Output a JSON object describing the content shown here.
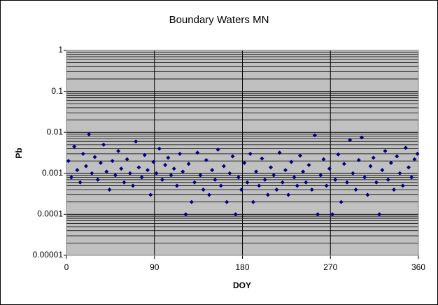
{
  "chart_data": {
    "type": "scatter",
    "title": "Boundary Waters MN",
    "x_label": "DOY",
    "y_label": "Pb",
    "xlim": [
      0,
      360
    ],
    "xticks": [
      0,
      90,
      180,
      270,
      360
    ],
    "ylim": [
      1e-05,
      1
    ],
    "yticks": [
      1e-05,
      0.0001,
      0.001,
      0.01,
      0.1,
      1
    ],
    "log_y": true,
    "grid": true,
    "minor_grid": true,
    "color": "#000080",
    "background": "#c0c0c0",
    "x": [
      2,
      5,
      8,
      11,
      14,
      17,
      20,
      23,
      26,
      29,
      32,
      35,
      38,
      41,
      44,
      47,
      50,
      53,
      56,
      59,
      62,
      65,
      68,
      71,
      74,
      77,
      80,
      83,
      86,
      89,
      92,
      95,
      98,
      101,
      104,
      107,
      110,
      113,
      116,
      119,
      122,
      125,
      128,
      131,
      134,
      137,
      140,
      143,
      146,
      149,
      152,
      155,
      158,
      161,
      164,
      167,
      170,
      173,
      176,
      179,
      182,
      185,
      188,
      191,
      194,
      197,
      200,
      203,
      206,
      209,
      212,
      215,
      218,
      221,
      224,
      227,
      230,
      233,
      236,
      239,
      242,
      245,
      248,
      251,
      254,
      257,
      260,
      263,
      266,
      269,
      272,
      275,
      278,
      281,
      284,
      287,
      290,
      293,
      296,
      299,
      302,
      305,
      308,
      311,
      314,
      317,
      320,
      323,
      326,
      329,
      332,
      335,
      338,
      341,
      344,
      347,
      350,
      353,
      356,
      359
    ],
    "values": [
      0.002,
      0.0008,
      0.0045,
      0.0012,
      0.0006,
      0.003,
      0.0015,
      0.009,
      0.001,
      0.0025,
      0.0007,
      0.0018,
      0.005,
      0.0011,
      0.0004,
      0.002,
      0.0009,
      0.0035,
      0.0013,
      0.0006,
      0.0022,
      0.001,
      0.0005,
      0.006,
      0.0014,
      0.0008,
      0.0028,
      0.0012,
      0.0003,
      0.0019,
      0.001,
      0.004,
      0.0007,
      0.0016,
      0.0024,
      0.0009,
      0.0013,
      0.0005,
      0.003,
      0.0011,
      0.0001,
      0.0017,
      0.0002,
      0.0006,
      0.0032,
      0.0009,
      0.0004,
      0.0021,
      0.0003,
      0.0012,
      0.0007,
      0.0038,
      0.0005,
      0.0015,
      0.0002,
      0.001,
      0.0026,
      0.0001,
      0.0008,
      0.0004,
      0.0018,
      0.0006,
      0.003,
      0.0002,
      0.0011,
      0.0005,
      0.0023,
      0.0007,
      0.0003,
      0.0014,
      0.0009,
      0.0004,
      0.0032,
      0.0006,
      0.0012,
      0.0003,
      0.0019,
      0.0008,
      0.0005,
      0.0027,
      0.0011,
      0.0006,
      0.0016,
      0.0004,
      0.0085,
      0.0001,
      0.0009,
      0.0022,
      0.0005,
      0.0013,
      0.0001,
      0.0007,
      0.0029,
      0.0002,
      0.0017,
      0.0006,
      0.0065,
      0.001,
      0.0004,
      0.0021,
      0.0075,
      0.0008,
      0.0003,
      0.0015,
      0.0024,
      0.0006,
      0.0001,
      0.0012,
      0.0035,
      0.0007,
      0.0018,
      0.0004,
      0.0026,
      0.001,
      0.0005,
      0.0042,
      0.0014,
      0.0008,
      0.0022,
      0.003
    ]
  }
}
